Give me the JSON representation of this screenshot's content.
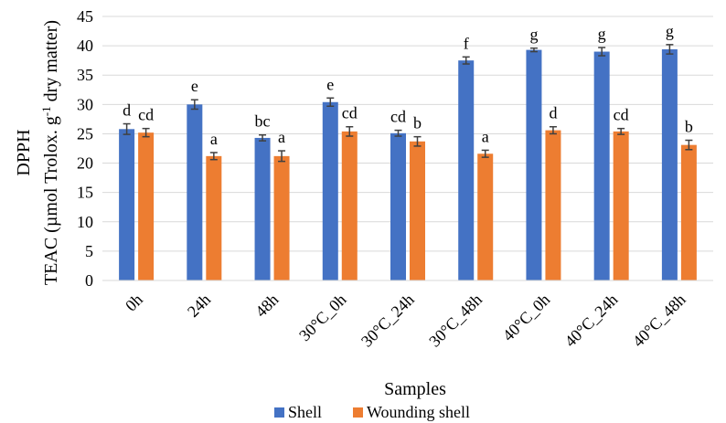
{
  "chart_data": {
    "type": "bar",
    "xlabel": "Samples",
    "ylabel_line1": "DPPH",
    "ylabel_line2_prefix": "TEAC (µmol Trolox. g",
    "ylabel_line2_sup": "-1",
    "ylabel_line2_suffix": " dry matter)",
    "ylim": [
      0,
      45
    ],
    "yticks": [
      "0",
      "5",
      "10",
      "15",
      "20",
      "25",
      "30",
      "35",
      "40",
      "45"
    ],
    "grid": true,
    "legend_position": "bottom",
    "categories": [
      "0h",
      "24h",
      "48h",
      "30°C_0h",
      "30°C_24h",
      "30°C_48h",
      "40°C_0h",
      "40°C_24h",
      "40°C_48h"
    ],
    "series": [
      {
        "name": "Shell",
        "color": "#4472C4",
        "values": [
          25.8,
          30.0,
          24.3,
          30.4,
          25.1,
          37.5,
          39.3,
          39.0,
          39.4
        ],
        "errors": [
          0.9,
          0.8,
          0.5,
          0.7,
          0.5,
          0.6,
          0.3,
          0.7,
          0.8
        ],
        "letters": [
          "d",
          "e",
          "bc",
          "e",
          "cd",
          "f",
          "g",
          "g",
          "g"
        ]
      },
      {
        "name": "Wounding shell",
        "color": "#ED7D31",
        "values": [
          25.2,
          21.2,
          21.2,
          25.4,
          23.7,
          21.6,
          25.6,
          25.4,
          23.1
        ],
        "errors": [
          0.7,
          0.6,
          0.9,
          0.8,
          0.8,
          0.6,
          0.6,
          0.5,
          0.8
        ],
        "letters": [
          "cd",
          "a",
          "a",
          "cd",
          "b",
          "a",
          "d",
          "cd",
          "b"
        ]
      }
    ]
  }
}
